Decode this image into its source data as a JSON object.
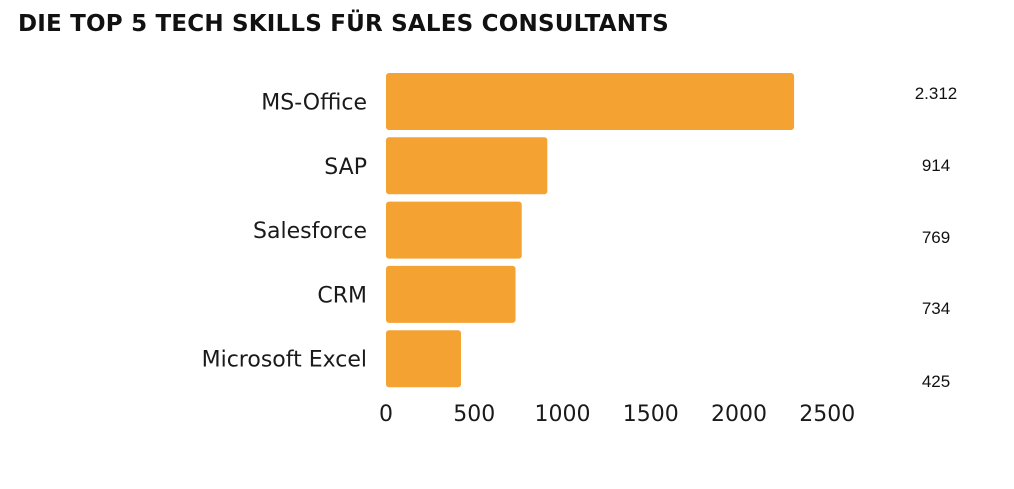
{
  "chart_data": {
    "type": "bar",
    "orientation": "horizontal",
    "title": "DIE TOP 5 TECH SKILLS FÜR SALES CONSULTANTS",
    "categories": [
      "MS-Office",
      "SAP",
      "Salesforce",
      "CRM",
      "Microsoft Excel"
    ],
    "values": [
      2312,
      914,
      769,
      734,
      425
    ],
    "value_labels": [
      "2.312",
      "914",
      "769",
      "734",
      "425"
    ],
    "xticks": [
      0,
      500,
      1000,
      1500,
      2000,
      2500
    ],
    "xlim": [
      0,
      2500
    ],
    "xlabel": "",
    "ylabel": "",
    "grid": false,
    "bar_color": "#F4A232"
  }
}
